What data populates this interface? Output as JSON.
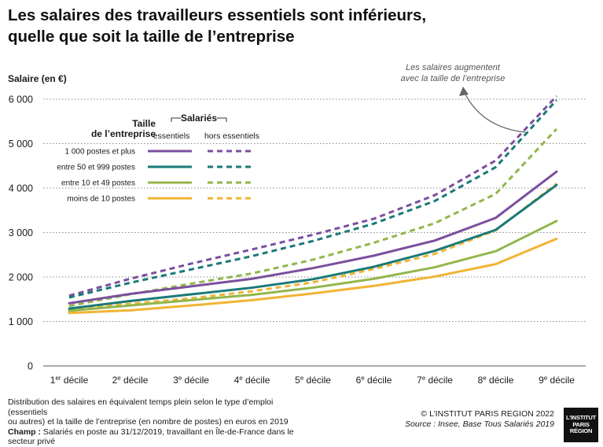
{
  "header": {
    "title_line1": "Les salaires des travailleurs essentiels sont inférieurs,",
    "title_line2": "quelle que soit la taille de l’entreprise"
  },
  "chart_data": {
    "type": "line",
    "ylabel": "Salaire (en €)",
    "xlabel": "",
    "ylim": [
      0,
      6000
    ],
    "yticks": [
      0,
      1000,
      2000,
      3000,
      4000,
      5000,
      6000
    ],
    "ytick_labels": [
      "0",
      "1 000",
      "2 000",
      "3 000",
      "4 000",
      "5 000",
      "6 000"
    ],
    "grid": true,
    "categories": [
      {
        "num": "1",
        "sup": "er",
        "rest": " décile"
      },
      {
        "num": "2",
        "sup": "e",
        "rest": " décile"
      },
      {
        "num": "3",
        "sup": "e",
        "rest": " décile"
      },
      {
        "num": "4",
        "sup": "e",
        "rest": " décile"
      },
      {
        "num": "5",
        "sup": "e",
        "rest": " décile"
      },
      {
        "num": "6",
        "sup": "e",
        "rest": " décile"
      },
      {
        "num": "7",
        "sup": "e",
        "rest": " décile"
      },
      {
        "num": "8",
        "sup": "e",
        "rest": " décile"
      },
      {
        "num": "9",
        "sup": "e",
        "rest": " décile"
      }
    ],
    "series": [
      {
        "name": "1 000 postes et plus",
        "group": "essentiels",
        "color": "#7b4f9e",
        "dashed": false,
        "values": [
          1410,
          1620,
          1790,
          1960,
          2200,
          2480,
          2820,
          3330,
          4370
        ]
      },
      {
        "name": "entre 50 et 999 postes",
        "group": "essentiels",
        "color": "#1a7a78",
        "dashed": false,
        "values": [
          1290,
          1460,
          1610,
          1760,
          1950,
          2230,
          2590,
          3060,
          4070
        ]
      },
      {
        "name": "entre 10 et 49 postes",
        "group": "essentiels",
        "color": "#93b64a",
        "dashed": false,
        "values": [
          1240,
          1360,
          1480,
          1600,
          1760,
          1960,
          2220,
          2580,
          3260
        ]
      },
      {
        "name": "moins de 10 postes",
        "group": "essentiels",
        "color": "#f1b434",
        "dashed": false,
        "values": [
          1190,
          1250,
          1360,
          1480,
          1630,
          1800,
          2010,
          2290,
          2860
        ]
      },
      {
        "name": "1 000 postes et plus",
        "group": "hors essentiels",
        "color": "#7b4f9e",
        "dashed": true,
        "values": [
          1580,
          1960,
          2300,
          2620,
          2950,
          3310,
          3840,
          4620,
          6070
        ]
      },
      {
        "name": "entre 50 et 999 postes",
        "group": "hors essentiels",
        "color": "#1a7a78",
        "dashed": true,
        "values": [
          1540,
          1870,
          2170,
          2470,
          2810,
          3200,
          3710,
          4470,
          5980
        ]
      },
      {
        "name": "entre 10 et 49 postes",
        "group": "hors essentiels",
        "color": "#93b64a",
        "dashed": true,
        "values": [
          1350,
          1610,
          1850,
          2080,
          2390,
          2770,
          3210,
          3870,
          5330
        ]
      },
      {
        "name": "moins de 10 postes",
        "group": "hors essentiels",
        "color": "#f1b434",
        "dashed": true,
        "values": [
          1270,
          1400,
          1520,
          1680,
          1880,
          2180,
          2520,
          3050,
          4100
        ]
      }
    ],
    "legend": {
      "title_line1": "Taille",
      "title_line2": "de l’entreprise",
      "group_title": "Salariés",
      "col_solid": "essentiels",
      "col_dashed": "hors essentiels",
      "rows": [
        "1 000 postes et plus",
        "entre 50 et 999 postes",
        "entre 10 et 49 postes",
        "moins de 10 postes"
      ],
      "colors": [
        "#7b4f9e",
        "#1a7a78",
        "#93b64a",
        "#f1b434"
      ]
    },
    "annotation": {
      "line1": "Les salaires augmentent",
      "line2": "avec la taille de l’entreprise"
    }
  },
  "footer": {
    "note_line1": "Distribution des salaires en équivalent temps plein selon le type d’emploi (essentiels",
    "note_line2": "ou autres) et la taille de l’entreprise (en nombre de postes) en euros en 2019",
    "champ_label": "Champ :",
    "champ_text": " Salariés en poste au 31/12/2019, travaillant en Île-de-France dans le secteur privé",
    "copyright": "© L’INSTITUT PARIS REGION 2022",
    "source": "Source : Insee, Base Tous Salariés 2019",
    "logo_line1": "L’INSTITUT",
    "logo_line2": "PARIS",
    "logo_line3": "RÉGION"
  }
}
